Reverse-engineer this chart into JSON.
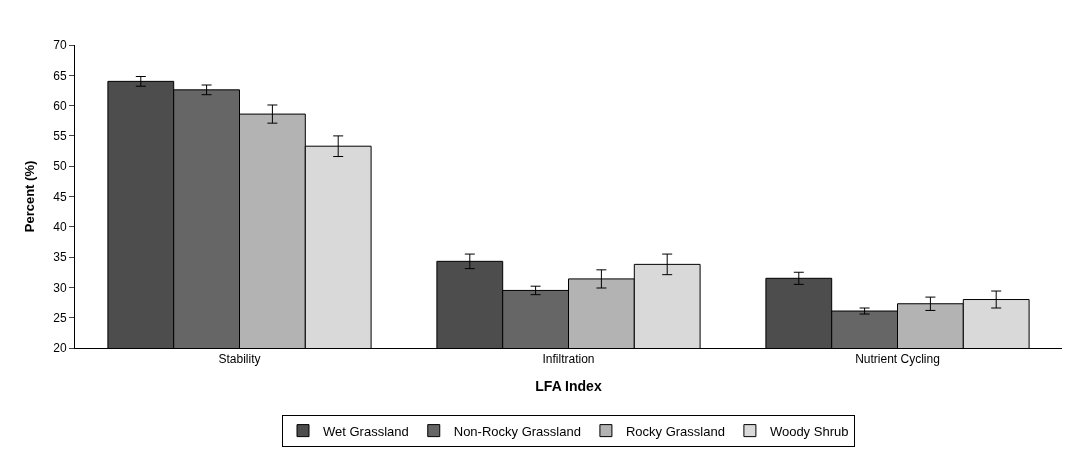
{
  "chart_data": {
    "type": "bar",
    "xlabel": "LFA Index",
    "ylabel": "Percent (%)",
    "categories": [
      "Stability",
      "Infiltration",
      "Nutrient Cycling"
    ],
    "series": [
      {
        "name": "Wet Grassland",
        "color": "#4d4d4d",
        "values": [
          64.0,
          34.3,
          31.5
        ],
        "errors": [
          0.8,
          1.2,
          1.0
        ]
      },
      {
        "name": "Non-Rocky Grassland",
        "color": "#666666",
        "values": [
          62.6,
          29.5,
          26.1
        ],
        "errors": [
          0.8,
          0.7,
          0.5
        ]
      },
      {
        "name": "Rocky Grassland",
        "color": "#b3b3b3",
        "values": [
          58.6,
          31.4,
          27.3
        ],
        "errors": [
          1.5,
          1.5,
          1.1
        ]
      },
      {
        "name": "Woody Shrub",
        "color": "#d9d9d9",
        "values": [
          53.3,
          33.8,
          28.0
        ],
        "errors": [
          1.7,
          1.7,
          1.4
        ]
      }
    ],
    "ylim": [
      20,
      70
    ],
    "yticks": [
      20,
      25,
      30,
      35,
      40,
      45,
      50,
      55,
      60,
      65,
      70
    ],
    "legend": "bottom"
  }
}
